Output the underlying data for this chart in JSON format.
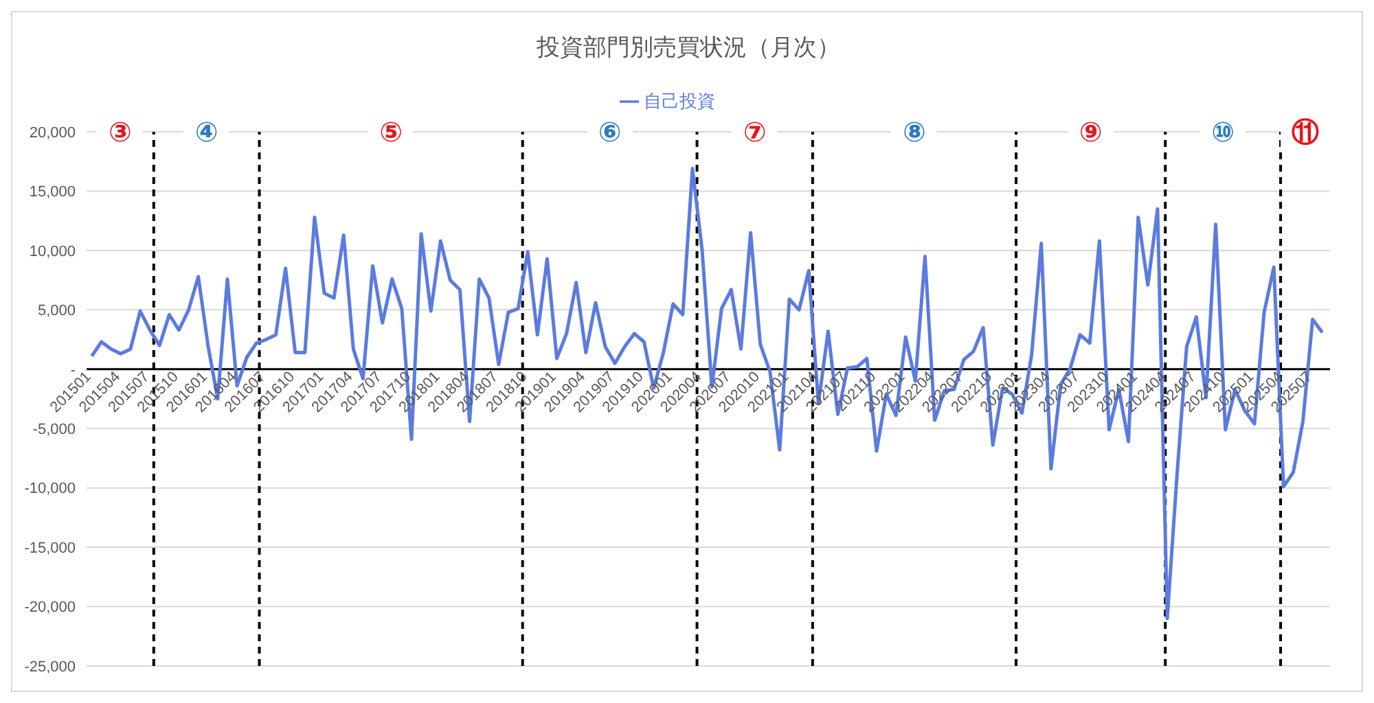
{
  "chart_data": {
    "type": "line",
    "title": "投資部門別売買状況（月次）",
    "x": [
      "2015-01",
      "2015-02",
      "2015-03",
      "2015-04",
      "2015-05",
      "2015-06",
      "2015-07",
      "2015-08",
      "2015-09",
      "2015-10",
      "2015-11",
      "2015-12",
      "2016-01",
      "2016-02",
      "2016-03",
      "2016-04",
      "2016-05",
      "2016-06",
      "2016-07",
      "2016-08",
      "2016-09",
      "2016-10",
      "2016-11",
      "2016-12",
      "2017-01",
      "2017-02",
      "2017-03",
      "2017-04",
      "2017-05",
      "2017-06",
      "2017-07",
      "2017-08",
      "2017-09",
      "2017-10",
      "2017-11",
      "2017-12",
      "2018-01",
      "2018-02",
      "2018-03",
      "2018-04",
      "2018-05",
      "2018-06",
      "2018-07",
      "2018-08",
      "2018-09",
      "2018-10",
      "2018-11",
      "2018-12",
      "2019-01",
      "2019-02",
      "2019-03",
      "2019-04",
      "2019-05",
      "2019-06",
      "2019-07",
      "2019-08",
      "2019-09",
      "2019-10",
      "2019-11",
      "2019-12",
      "2020-01",
      "2020-02",
      "2020-03",
      "2020-04",
      "2020-05",
      "2020-06",
      "2020-07",
      "2020-08",
      "2020-09",
      "2020-10",
      "2020-11",
      "2020-12",
      "2021-01",
      "2021-02",
      "2021-03",
      "2021-04",
      "2021-05",
      "2021-06",
      "2021-07",
      "2021-08",
      "2021-09",
      "2021-10",
      "2021-11",
      "2021-12",
      "2022-01",
      "2022-02",
      "2022-03",
      "2022-04",
      "2022-05",
      "2022-06",
      "2022-07",
      "2022-08",
      "2022-09",
      "2022-10",
      "2022-11",
      "2022-12",
      "2023-01",
      "2023-02",
      "2023-03",
      "2023-04",
      "2023-05",
      "2023-06",
      "2023-07",
      "2023-08",
      "2023-09",
      "2023-10",
      "2023-11",
      "2023-12",
      "2024-01",
      "2024-02",
      "2024-03",
      "2024-04",
      "2024-05",
      "2024-06",
      "2024-07",
      "2024-08",
      "2024-09",
      "2024-10",
      "2024-11",
      "2024-12",
      "2025-01",
      "2025-02",
      "2025-03",
      "2025-04",
      "2025-05",
      "2025-06",
      "2025-07",
      "2025-08"
    ],
    "series": [
      {
        "name": "自己投資",
        "color": "#5b7be0",
        "values": [
          1100,
          2300,
          1700,
          1300,
          1700,
          4900,
          3300,
          2000,
          4600,
          3300,
          5000,
          7800,
          2000,
          -2500,
          7600,
          -1400,
          1000,
          2200,
          2500,
          2900,
          8500,
          1400,
          1400,
          12800,
          6400,
          6000,
          11300,
          1700,
          -800,
          8700,
          3900,
          7600,
          5100,
          -5900,
          11400,
          4900,
          10800,
          7500,
          6700,
          -4400,
          7600,
          6000,
          400,
          4800,
          5100,
          9900,
          2900,
          9300,
          900,
          3000,
          7300,
          1400,
          5600,
          1900,
          500,
          1900,
          3000,
          2300,
          -1600,
          1400,
          5500,
          4600,
          16900,
          10000,
          -1500,
          5100,
          6700,
          1700,
          11500,
          2100,
          -200,
          -6800,
          5900,
          5000,
          8300,
          -2900,
          3200,
          -3800,
          100,
          200,
          900,
          -6900,
          -2100,
          -3900,
          2700,
          -1000,
          9500,
          -4300,
          -1800,
          -1700,
          800,
          1500,
          3500,
          -6400,
          -1600,
          -2100,
          -3700,
          1200,
          10600,
          -8400,
          -1300,
          100,
          2900,
          2200,
          10800,
          -5100,
          -1700,
          -6100,
          12800,
          7100,
          13500,
          -21000,
          -9000,
          1900,
          4400,
          -2400,
          12200,
          -5100,
          -1700,
          -3500,
          -4600,
          4800,
          8600,
          -9900,
          -8700,
          -4400,
          4200,
          3100
        ]
      }
    ],
    "xlim": [
      "2014-12-15",
      "2025-08-25"
    ],
    "xticks": [
      {
        "value": "2015-01",
        "label": "201501"
      },
      {
        "value": "2015-04",
        "label": "201504"
      },
      {
        "value": "2015-07",
        "label": "201507"
      },
      {
        "value": "2015-10",
        "label": "201510"
      },
      {
        "value": "2016-01",
        "label": "201601"
      },
      {
        "value": "2016-04",
        "label": "201604"
      },
      {
        "value": "2016-07",
        "label": "201607"
      },
      {
        "value": "2016-10",
        "label": "201610"
      },
      {
        "value": "2017-01",
        "label": "201701"
      },
      {
        "value": "2017-04",
        "label": "201704"
      },
      {
        "value": "2017-07",
        "label": "201707"
      },
      {
        "value": "2017-10",
        "label": "201710"
      },
      {
        "value": "2018-01",
        "label": "201801"
      },
      {
        "value": "2018-04",
        "label": "201804"
      },
      {
        "value": "2018-07",
        "label": "201807"
      },
      {
        "value": "2018-10",
        "label": "201810"
      },
      {
        "value": "2019-01",
        "label": "201901"
      },
      {
        "value": "2019-04",
        "label": "201904"
      },
      {
        "value": "2019-07",
        "label": "201907"
      },
      {
        "value": "2019-10",
        "label": "201910"
      },
      {
        "value": "2020-01",
        "label": "202001"
      },
      {
        "value": "2020-04",
        "label": "202004"
      },
      {
        "value": "2020-07",
        "label": "202007"
      },
      {
        "value": "2020-10",
        "label": "202010"
      },
      {
        "value": "2021-01",
        "label": "202101"
      },
      {
        "value": "2021-04",
        "label": "202104"
      },
      {
        "value": "2021-07",
        "label": "202107"
      },
      {
        "value": "2021-10",
        "label": "202110"
      },
      {
        "value": "2022-01",
        "label": "202201"
      },
      {
        "value": "2022-04",
        "label": "202204"
      },
      {
        "value": "2022-07",
        "label": "202207"
      },
      {
        "value": "2022-10",
        "label": "202210"
      },
      {
        "value": "2023-01",
        "label": "202301"
      },
      {
        "value": "2023-04",
        "label": "202304"
      },
      {
        "value": "2023-07",
        "label": "202307"
      },
      {
        "value": "2023-10",
        "label": "202310"
      },
      {
        "value": "2024-01",
        "label": "202401"
      },
      {
        "value": "2024-04",
        "label": "202404"
      },
      {
        "value": "2024-07",
        "label": "202407"
      },
      {
        "value": "2024-10",
        "label": "202410"
      },
      {
        "value": "2025-01",
        "label": "202501"
      },
      {
        "value": "2025-04",
        "label": "202504"
      },
      {
        "value": "2025-07",
        "label": "202507"
      }
    ],
    "ylim": [
      -25000,
      20000
    ],
    "yticks": [
      {
        "value": -25000,
        "label": "-25,000"
      },
      {
        "value": -20000,
        "label": "-20,000"
      },
      {
        "value": -15000,
        "label": "-15,000"
      },
      {
        "value": -10000,
        "label": "-10,000"
      },
      {
        "value": -5000,
        "label": "-5,000"
      },
      {
        "value": 0,
        "label": "-"
      },
      {
        "value": 5000,
        "label": "5,000"
      },
      {
        "value": 10000,
        "label": "10,000"
      },
      {
        "value": 15000,
        "label": "15,000"
      },
      {
        "value": 20000,
        "label": "20,000"
      }
    ],
    "grid": "y",
    "legend": "top",
    "marker": "none",
    "line_style": "solid",
    "ref_lines": [
      {
        "axis": "x",
        "value": "2015-07-13",
        "color": "#000000",
        "line_style": "dashed"
      },
      {
        "axis": "x",
        "value": "2016-06-10",
        "color": "#000000",
        "line_style": "dashed"
      },
      {
        "axis": "x",
        "value": "2018-09-15",
        "color": "#000000",
        "line_style": "dashed"
      },
      {
        "axis": "x",
        "value": "2020-03-15",
        "color": "#000000",
        "line_style": "dashed"
      },
      {
        "axis": "x",
        "value": "2021-03-13",
        "color": "#000000",
        "line_style": "dashed"
      },
      {
        "axis": "x",
        "value": "2022-12-13",
        "color": "#000000",
        "line_style": "dashed"
      },
      {
        "axis": "x",
        "value": "2024-03-25",
        "color": "#000000",
        "line_style": "dashed"
      },
      {
        "axis": "x",
        "value": "2025-03-22",
        "color": "#000000",
        "line_style": "dashed"
      }
    ],
    "annotations": [
      "③",
      "④",
      "⑤",
      "⑥",
      "⑦",
      "⑧",
      "⑨",
      "⑩",
      "⑪"
    ]
  }
}
